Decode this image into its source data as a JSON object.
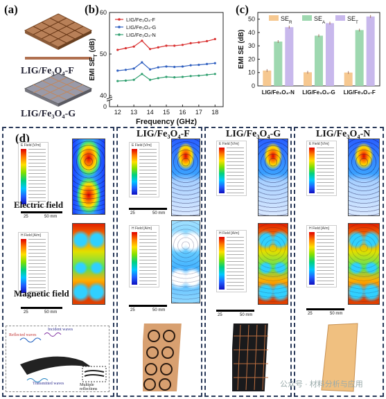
{
  "panel_labels": {
    "a": "(a)",
    "b": "(b)",
    "c": "(c)",
    "d": "(d)"
  },
  "panel_a": {
    "label_top": "LIG/Fe₃O₄-F",
    "label_bottom": "LIG/Fe₃O₄-G"
  },
  "chart_data": [
    {
      "type": "line",
      "xlabel": "Frequency (GHz)",
      "ylabel": "EMI SE_T (dB)",
      "x": [
        12,
        12.5,
        13,
        13.5,
        14,
        14.5,
        15,
        15.5,
        16,
        16.5,
        17,
        17.5,
        18
      ],
      "xticks": [
        "12",
        "13",
        "14",
        "15",
        "16",
        "17",
        "18"
      ],
      "yticks_upper": [
        "40",
        "50",
        "60"
      ],
      "ytick_lower": "0",
      "ylim": [
        40,
        60
      ],
      "axis_break": true,
      "legend_placement": "top-left",
      "series": [
        {
          "name": "LIG/Fe₃O₄-F",
          "color": "#d93030",
          "values": [
            51.0,
            51.4,
            51.8,
            53.2,
            51.2,
            51.6,
            52.0,
            52.0,
            52.2,
            52.6,
            52.8,
            53.1,
            53.6
          ]
        },
        {
          "name": "LIG/Fe₃O₄-G",
          "color": "#3060c0",
          "values": [
            46.0,
            46.2,
            46.5,
            48.0,
            46.3,
            46.8,
            47.0,
            46.9,
            47.0,
            47.3,
            47.4,
            47.6,
            47.8
          ]
        },
        {
          "name": "LIG/Fe₃O₄-N",
          "color": "#30a070",
          "values": [
            43.5,
            43.6,
            43.8,
            45.2,
            43.8,
            44.2,
            44.5,
            44.4,
            44.5,
            44.7,
            44.8,
            45.0,
            45.2
          ]
        }
      ]
    },
    {
      "type": "bar",
      "ylabel": "EMI SE (dB)",
      "categories": [
        "LIG/Fe₃O₄-N",
        "LIG/Fe₃O₄-G",
        "LIG/Fe₃O₄-F"
      ],
      "yticks": [
        "0",
        "10",
        "20",
        "30",
        "40",
        "50"
      ],
      "ylim": [
        0,
        55
      ],
      "legend_placement": "top",
      "series": [
        {
          "name": "SE_R",
          "color": "#f6c890",
          "values": [
            11.5,
            10.2,
            10.0
          ]
        },
        {
          "name": "SE_A",
          "color": "#9ed8b0",
          "values": [
            33.2,
            37.6,
            41.8
          ]
        },
        {
          "name": "SE_T",
          "color": "#c8b8ec",
          "values": [
            44.0,
            47.0,
            52.0
          ]
        }
      ]
    }
  ],
  "panel_d": {
    "row_labels": {
      "electric": "Electric field",
      "magnetic": "Magnetic field"
    },
    "column_titles": [
      "LIG/Fe₃O₄-F",
      "LIG/Fe₃O₄-G",
      "LIG/Fe₃O₄-N"
    ],
    "scale": {
      "left": "25",
      "right": "50 mm"
    },
    "legend_e": "E Field [V/m]",
    "legend_h": "H Field [A/m]",
    "schematic": {
      "reflected": "Reflected waves",
      "incident": "Incident waves",
      "transmitted": "Transmitted waves",
      "multiple": "Multiple reflections"
    }
  },
  "watermark": "公众号 · 材料分析与应用"
}
